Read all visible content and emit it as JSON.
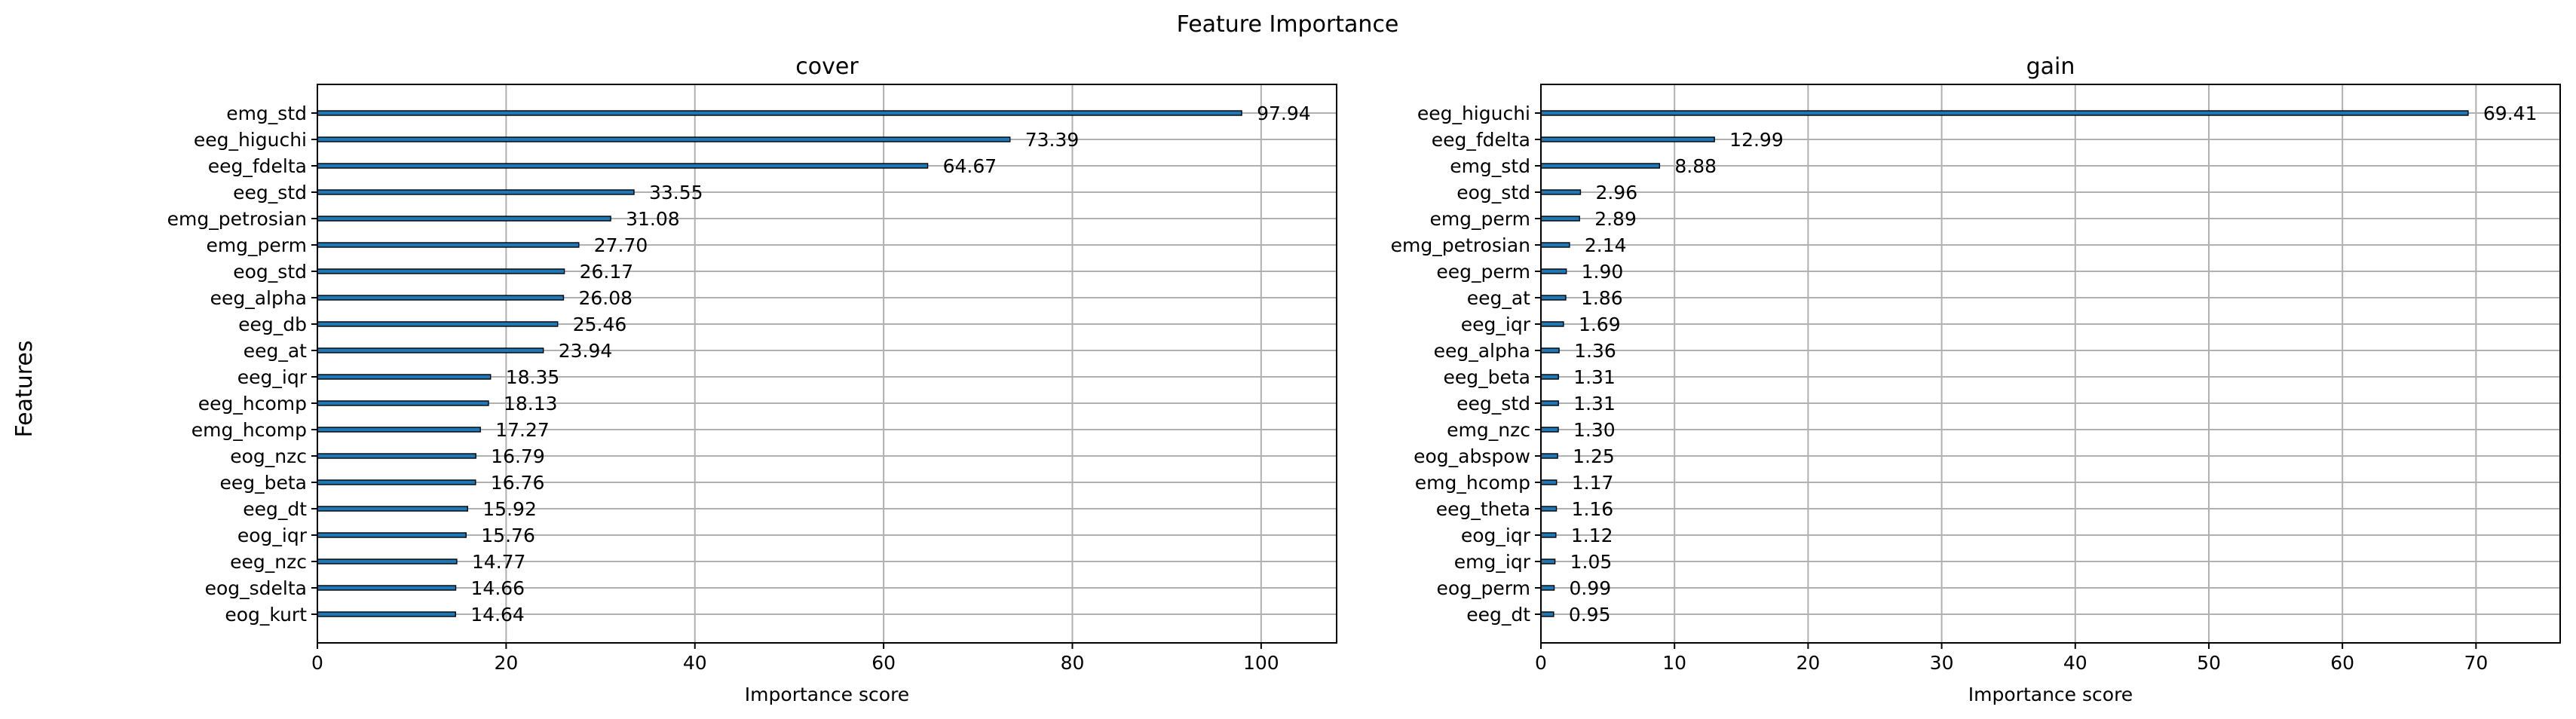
{
  "figure": {
    "title": "Feature Importance",
    "ylabel": "Features",
    "bar_color": "#1f77b4",
    "grid_color": "#b0b0b0"
  },
  "chart_data": [
    {
      "type": "bar",
      "orientation": "horizontal",
      "title": "cover",
      "xlabel": "Importance score",
      "ylabel": "",
      "xlim": [
        0,
        108
      ],
      "xticks": [
        0,
        20,
        40,
        60,
        80,
        100
      ],
      "grid": true,
      "categories": [
        "emg_std",
        "eeg_higuchi",
        "eeg_fdelta",
        "eeg_std",
        "emg_petrosian",
        "emg_perm",
        "eog_std",
        "eeg_alpha",
        "eeg_db",
        "eeg_at",
        "eeg_iqr",
        "eeg_hcomp",
        "emg_hcomp",
        "eog_nzc",
        "eeg_beta",
        "eeg_dt",
        "eog_iqr",
        "eeg_nzc",
        "eog_sdelta",
        "eog_kurt"
      ],
      "values": [
        97.94,
        73.39,
        64.67,
        33.55,
        31.08,
        27.7,
        26.17,
        26.08,
        25.46,
        23.94,
        18.35,
        18.13,
        17.27,
        16.79,
        16.76,
        15.92,
        15.76,
        14.77,
        14.66,
        14.64
      ],
      "value_labels": [
        "97.94",
        "73.39",
        "64.67",
        "33.55",
        "31.08",
        "27.70",
        "26.17",
        "26.08",
        "25.46",
        "23.94",
        "18.35",
        "18.13",
        "17.27",
        "16.79",
        "16.76",
        "15.92",
        "15.76",
        "14.77",
        "14.66",
        "14.64"
      ]
    },
    {
      "type": "bar",
      "orientation": "horizontal",
      "title": "gain",
      "xlabel": "Importance score",
      "ylabel": "",
      "xlim": [
        0,
        76.3
      ],
      "xticks": [
        0,
        10,
        20,
        30,
        40,
        50,
        60,
        70
      ],
      "grid": true,
      "categories": [
        "eeg_higuchi",
        "eeg_fdelta",
        "emg_std",
        "eog_std",
        "emg_perm",
        "emg_petrosian",
        "eeg_perm",
        "eeg_at",
        "eeg_iqr",
        "eeg_alpha",
        "eeg_beta",
        "eeg_std",
        "emg_nzc",
        "eog_abspow",
        "emg_hcomp",
        "eeg_theta",
        "eog_iqr",
        "emg_iqr",
        "eog_perm",
        "eeg_dt"
      ],
      "values": [
        69.41,
        12.99,
        8.88,
        2.96,
        2.89,
        2.14,
        1.9,
        1.86,
        1.69,
        1.36,
        1.31,
        1.31,
        1.3,
        1.25,
        1.17,
        1.16,
        1.12,
        1.05,
        0.99,
        0.95
      ],
      "value_labels": [
        "69.41",
        "12.99",
        "8.88",
        "2.96",
        "2.89",
        "2.14",
        "1.90",
        "1.86",
        "1.69",
        "1.36",
        "1.31",
        "1.31",
        "1.30",
        "1.25",
        "1.17",
        "1.16",
        "1.12",
        "1.05",
        "0.99",
        "0.95"
      ]
    }
  ]
}
